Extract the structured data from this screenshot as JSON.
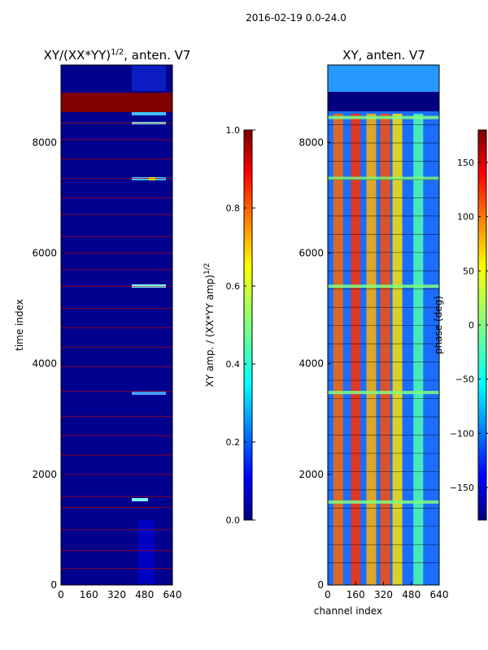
{
  "suptitle": "2016-02-19 0.0-24.0",
  "chart_data": [
    {
      "type": "heatmap",
      "title": "XY/(XX*YY)^{1/2}, anten. V7",
      "xlabel": "",
      "ylabel": "time index",
      "xlim": [
        0,
        640
      ],
      "ylim": [
        0,
        9400
      ],
      "xticks": [
        "0",
        "160",
        "320",
        "480",
        "640"
      ],
      "xtick_values": [
        0,
        160,
        320,
        480,
        640
      ],
      "yticks": [
        "0",
        "2000",
        "4000",
        "6000",
        "8000"
      ],
      "ytick_values": [
        0,
        2000,
        4000,
        6000,
        8000
      ],
      "colorbar": {
        "label": "XY amp. / (XX*YY amp)^{1/2}",
        "range": [
          0.0,
          1.0
        ],
        "ticks": [
          "0.0",
          "0.2",
          "0.4",
          "0.6",
          "0.8",
          "1.0"
        ],
        "tick_values": [
          0.0,
          0.2,
          0.4,
          0.6,
          0.8,
          1.0
        ],
        "colormap": "jet"
      },
      "features": {
        "saturated_band_rows": [
          8800,
          9150
        ],
        "high_values_channels": [
          420,
          620
        ],
        "horizontal_flag_lines_rows": [
          300,
          620,
          1000,
          1400,
          1600,
          2000,
          2350,
          2700,
          3050,
          3500,
          3950,
          4300,
          4650,
          5000,
          5400,
          5700,
          6000,
          6300,
          6700,
          7000,
          7350,
          7700,
          8050,
          8350
        ]
      }
    },
    {
      "type": "heatmap",
      "title": "XY, anten. V7",
      "xlabel": "channel index",
      "ylabel": "",
      "xlim": [
        0,
        640
      ],
      "ylim": [
        0,
        9400
      ],
      "xticks": [
        "0",
        "160",
        "320",
        "480",
        "640"
      ],
      "xtick_values": [
        0,
        160,
        320,
        480,
        640
      ],
      "yticks": [
        "0",
        "2000",
        "4000",
        "6000",
        "8000"
      ],
      "ytick_values": [
        0,
        2000,
        4000,
        6000,
        8000
      ],
      "colorbar": {
        "label": "phase (deg)",
        "range": [
          -180,
          180
        ],
        "ticks": [
          "−150",
          "−100",
          "−50",
          "0",
          "50",
          "100",
          "150"
        ],
        "tick_values": [
          -150,
          -100,
          -50,
          0,
          50,
          100,
          150
        ],
        "colormap": "jet"
      },
      "features": {
        "stripe_channels": [
          60,
          160,
          250,
          330,
          400,
          520
        ],
        "flagged_band_rows": [
          8500,
          9150
        ],
        "flag_line_rows": [
          1500,
          3480,
          5400,
          7350,
          8450
        ]
      }
    }
  ]
}
